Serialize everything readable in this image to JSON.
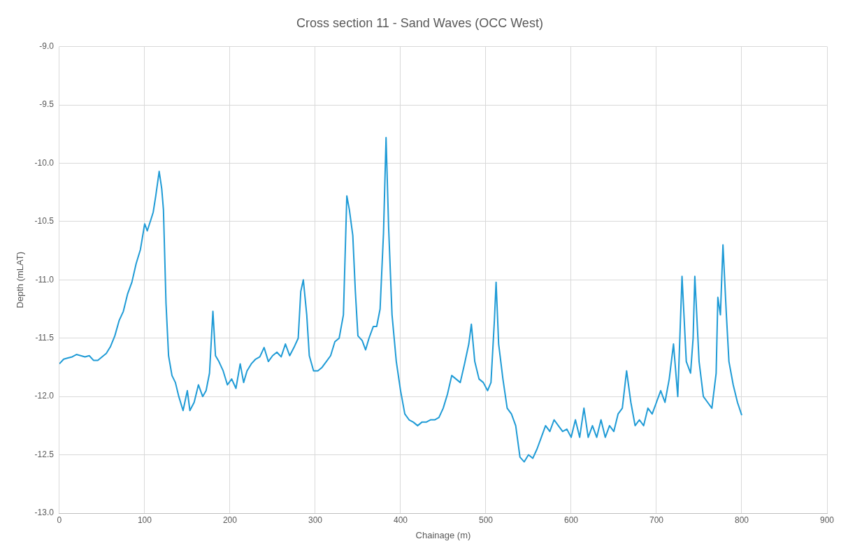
{
  "chart_data": {
    "type": "line",
    "title": "Cross section 11 - Sand Waves (OCC West)",
    "xlabel": "Chainage (m)",
    "ylabel": "Depth (mLAT)",
    "x": [
      0,
      5,
      10,
      15,
      20,
      25,
      30,
      35,
      40,
      45,
      50,
      55,
      60,
      65,
      70,
      75,
      80,
      85,
      90,
      95,
      100,
      103,
      107,
      110,
      113,
      117,
      120,
      122,
      125,
      128,
      132,
      136,
      140,
      145,
      150,
      153,
      158,
      163,
      168,
      172,
      176,
      180,
      183,
      187,
      192,
      197,
      202,
      207,
      212,
      216,
      220,
      225,
      230,
      235,
      240,
      245,
      250,
      255,
      260,
      265,
      270,
      275,
      280,
      283,
      286,
      290,
      293,
      298,
      303,
      308,
      313,
      318,
      323,
      328,
      333,
      337,
      340,
      344,
      347,
      350,
      355,
      359,
      363,
      368,
      372,
      376,
      380,
      383,
      386,
      390,
      395,
      400,
      405,
      410,
      415,
      420,
      425,
      430,
      435,
      440,
      445,
      450,
      455,
      460,
      465,
      470,
      475,
      480,
      483,
      487,
      492,
      497,
      502,
      506,
      510,
      512,
      515,
      520,
      525,
      530,
      535,
      540,
      545,
      550,
      555,
      560,
      565,
      570,
      575,
      580,
      585,
      590,
      595,
      600,
      605,
      610,
      615,
      620,
      625,
      630,
      635,
      640,
      645,
      650,
      655,
      660,
      665,
      670,
      675,
      680,
      685,
      690,
      695,
      700,
      705,
      710,
      715,
      720,
      725,
      730,
      735,
      740,
      743,
      745,
      750,
      755,
      760,
      765,
      770,
      772,
      775,
      778,
      782,
      785,
      790,
      795,
      800
    ],
    "series": [
      {
        "color": "#1f9bd6",
        "values": [
          -11.72,
          -11.68,
          -11.67,
          -11.66,
          -11.64,
          -11.65,
          -11.66,
          -11.65,
          -11.69,
          -11.69,
          -11.66,
          -11.63,
          -11.57,
          -11.48,
          -11.35,
          -11.27,
          -11.12,
          -11.02,
          -10.86,
          -10.74,
          -10.52,
          -10.58,
          -10.49,
          -10.42,
          -10.28,
          -10.07,
          -10.22,
          -10.4,
          -11.2,
          -11.65,
          -11.82,
          -11.88,
          -12.0,
          -12.12,
          -11.95,
          -12.12,
          -12.05,
          -11.9,
          -12.0,
          -11.95,
          -11.8,
          -11.27,
          -11.65,
          -11.7,
          -11.78,
          -11.9,
          -11.85,
          -11.93,
          -11.72,
          -11.88,
          -11.78,
          -11.72,
          -11.68,
          -11.66,
          -11.58,
          -11.7,
          -11.65,
          -11.62,
          -11.66,
          -11.55,
          -11.65,
          -11.58,
          -11.5,
          -11.1,
          -11.0,
          -11.3,
          -11.65,
          -11.78,
          -11.78,
          -11.75,
          -11.7,
          -11.65,
          -11.53,
          -11.5,
          -11.3,
          -10.28,
          -10.4,
          -10.62,
          -11.1,
          -11.48,
          -11.52,
          -11.6,
          -11.5,
          -11.4,
          -11.4,
          -11.25,
          -10.6,
          -9.78,
          -10.55,
          -11.3,
          -11.7,
          -11.95,
          -12.15,
          -12.2,
          -12.22,
          -12.25,
          -12.22,
          -12.22,
          -12.2,
          -12.2,
          -12.18,
          -12.1,
          -11.98,
          -11.82,
          -11.85,
          -11.88,
          -11.72,
          -11.55,
          -11.38,
          -11.7,
          -11.85,
          -11.88,
          -11.95,
          -11.88,
          -11.35,
          -11.02,
          -11.55,
          -11.85,
          -12.1,
          -12.15,
          -12.25,
          -12.52,
          -12.56,
          -12.5,
          -12.53,
          -12.45,
          -12.35,
          -12.25,
          -12.3,
          -12.2,
          -12.25,
          -12.3,
          -12.28,
          -12.35,
          -12.2,
          -12.35,
          -12.1,
          -12.35,
          -12.25,
          -12.35,
          -12.2,
          -12.35,
          -12.25,
          -12.3,
          -12.15,
          -12.1,
          -11.78,
          -12.05,
          -12.25,
          -12.2,
          -12.25,
          -12.1,
          -12.15,
          -12.05,
          -11.95,
          -12.05,
          -11.85,
          -11.55,
          -12.0,
          -10.97,
          -11.7,
          -11.8,
          -11.5,
          -10.97,
          -11.7,
          -12.0,
          -12.05,
          -12.1,
          -11.8,
          -11.15,
          -11.3,
          -10.7,
          -11.3,
          -11.7,
          -11.9,
          -12.05,
          -12.16
        ]
      }
    ],
    "xlim": [
      0,
      900
    ],
    "xticks": [
      0,
      100,
      200,
      300,
      400,
      500,
      600,
      700,
      800,
      900
    ],
    "ylim": [
      -13,
      -9
    ],
    "yticks": [
      {
        "value": -13,
        "label": "-13.0"
      },
      {
        "value": -12.5,
        "label": "-12.5"
      },
      {
        "value": -12,
        "label": "-12.0"
      },
      {
        "value": -11.5,
        "label": "-11.5"
      },
      {
        "value": -11,
        "label": "-11.0"
      },
      {
        "value": -10.5,
        "label": "-10.5"
      },
      {
        "value": -10,
        "label": "-10.0"
      },
      {
        "value": -9.5,
        "label": "-9.5"
      },
      {
        "value": -9,
        "label": "-9.0"
      }
    ],
    "grid": true,
    "marker": "none",
    "line_style": "solid"
  }
}
